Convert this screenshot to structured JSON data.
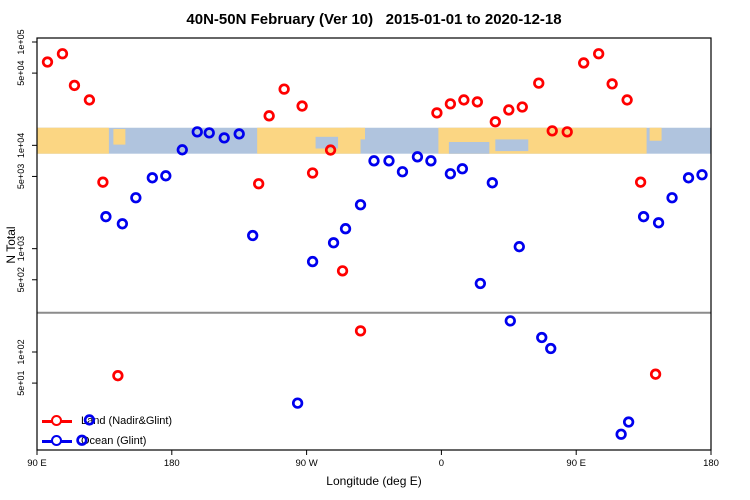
{
  "chart_data": {
    "type": "scatter",
    "title": "40N-50N February (Ver 10)   2015-01-01 to 2020-12-18",
    "xlabel": "Longitude (deg E)",
    "ylabel": "N Total",
    "x_axis": {
      "unit": "deg E, wrapping eastward from 90E",
      "min": 90,
      "max": 540,
      "ticks": [
        {
          "lon": 90,
          "label": "90 E"
        },
        {
          "lon": 180,
          "label": "180"
        },
        {
          "lon": 270,
          "label": "90 W"
        },
        {
          "lon": 360,
          "label": "0"
        },
        {
          "lon": 450,
          "label": "90 E"
        },
        {
          "lon": 540,
          "label": "180"
        }
      ]
    },
    "y_axis": {
      "scale": "log10",
      "min": 11,
      "max": 130000,
      "ticks": [
        {
          "value": 100000,
          "label": "1e+05"
        },
        {
          "value": 50000,
          "label": "5e+04"
        },
        {
          "value": 10000,
          "label": "1e+04"
        },
        {
          "value": 5000,
          "label": "5e+03"
        },
        {
          "value": 1000,
          "label": "1e+03"
        },
        {
          "value": 500,
          "label": "5e+02"
        },
        {
          "value": 100,
          "label": "1e+02"
        },
        {
          "value": 50,
          "label": "5e+01"
        }
      ]
    },
    "reference_line": {
      "value": 240,
      "color": "#8C8C8C"
    },
    "map_band": {
      "description": "40N-50N latitude world-map strip centered at 1e+04",
      "value_top": 14800,
      "value_bottom": 8300,
      "ocean_color": "#B0C4DE",
      "land_color": "#FBD683",
      "land_segments": [
        [
          90,
          138
        ],
        [
          237,
          306
        ],
        [
          358,
          497
        ]
      ],
      "detail_patches": [
        {
          "type": "land",
          "from": 141,
          "to": 149,
          "frac_top": 0.05,
          "frac_bottom": 0.65
        },
        {
          "type": "land",
          "from": 296,
          "to": 309,
          "frac_top": 0.0,
          "frac_bottom": 0.45
        },
        {
          "type": "ocean",
          "from": 276,
          "to": 291,
          "frac_top": 0.35,
          "frac_bottom": 0.8
        },
        {
          "type": "ocean",
          "from": 365,
          "to": 392,
          "frac_top": 0.55,
          "frac_bottom": 1.0
        },
        {
          "type": "ocean",
          "from": 396,
          "to": 418,
          "frac_top": 0.45,
          "frac_bottom": 0.9
        },
        {
          "type": "land",
          "from": 499,
          "to": 507,
          "frac_top": 0.0,
          "frac_bottom": 0.5
        }
      ]
    },
    "series": [
      {
        "name": "Land (Nadir&Glint)",
        "color": "#FF0000",
        "points": [
          [
            97,
            64000
          ],
          [
            107,
            77000
          ],
          [
            115,
            38000
          ],
          [
            125,
            27500
          ],
          [
            134,
            4400
          ],
          [
            144,
            59
          ],
          [
            238,
            4250
          ],
          [
            245,
            19300
          ],
          [
            255,
            35000
          ],
          [
            267,
            24000
          ],
          [
            274,
            5400
          ],
          [
            286,
            9000
          ],
          [
            294,
            610
          ],
          [
            306,
            160
          ],
          [
            357,
            20600
          ],
          [
            366,
            25200
          ],
          [
            375,
            27500
          ],
          [
            384,
            26300
          ],
          [
            396,
            16900
          ],
          [
            405,
            22000
          ],
          [
            414,
            23500
          ],
          [
            425,
            40000
          ],
          [
            434,
            13800
          ],
          [
            444,
            13500
          ],
          [
            455,
            62700
          ],
          [
            465,
            77000
          ],
          [
            474,
            39300
          ],
          [
            484,
            27500
          ],
          [
            493,
            4400
          ],
          [
            503,
            61
          ]
        ]
      },
      {
        "name": "Ocean (Glint)",
        "color": "#0000EE",
        "points": [
          [
            120,
            14
          ],
          [
            125,
            22
          ],
          [
            136,
            2040
          ],
          [
            147,
            1740
          ],
          [
            156,
            3110
          ],
          [
            167,
            4850
          ],
          [
            176,
            5070
          ],
          [
            187,
            9050
          ],
          [
            197,
            13500
          ],
          [
            205,
            13200
          ],
          [
            215,
            11800
          ],
          [
            225,
            12900
          ],
          [
            234,
            1340
          ],
          [
            264,
            32
          ],
          [
            274,
            750
          ],
          [
            288,
            1140
          ],
          [
            296,
            1560
          ],
          [
            306,
            2660
          ],
          [
            315,
            7080
          ],
          [
            325,
            7080
          ],
          [
            334,
            5550
          ],
          [
            344,
            7740
          ],
          [
            353,
            7080
          ],
          [
            366,
            5310
          ],
          [
            374,
            5930
          ],
          [
            386,
            460
          ],
          [
            394,
            4340
          ],
          [
            406,
            200
          ],
          [
            412,
            1045
          ],
          [
            427,
            138
          ],
          [
            433,
            108
          ],
          [
            480,
            16
          ],
          [
            485,
            21
          ],
          [
            495,
            2040
          ],
          [
            505,
            1780
          ],
          [
            514,
            3110
          ],
          [
            525,
            4850
          ],
          [
            534,
            5190
          ]
        ]
      }
    ],
    "legend": {
      "position": "bottom-left"
    }
  }
}
